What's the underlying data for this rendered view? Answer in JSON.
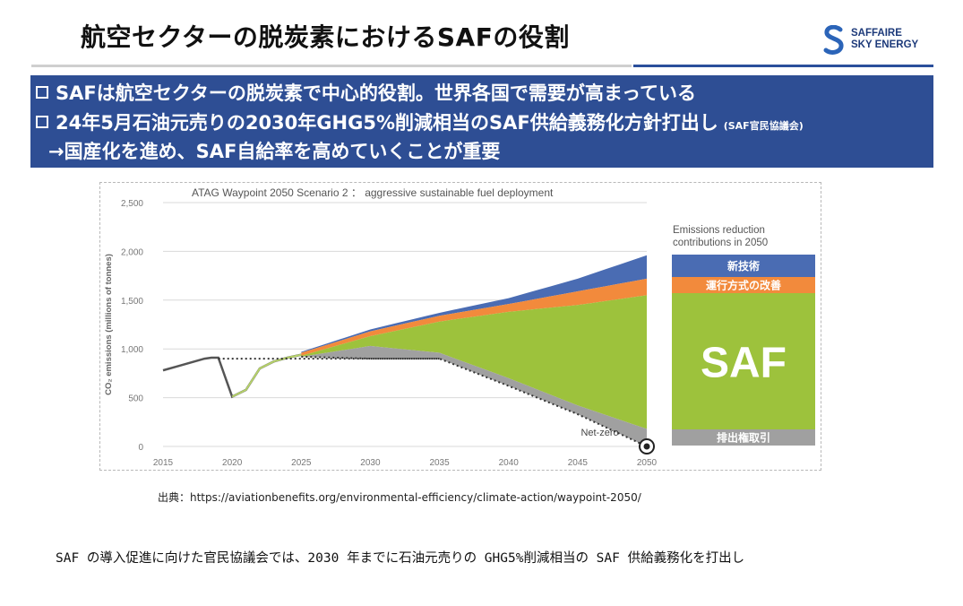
{
  "slide": {
    "title": "航空セクターの脱炭素におけるSAFの役割",
    "logo": {
      "line1": "SAFFAIRE",
      "line2": "SKY ENERGY"
    },
    "bullets": [
      {
        "text": "SAFは航空セクターの脱炭素で中心的役割。世界各国で需要が高まっている",
        "note": ""
      },
      {
        "text": "24年5月石油元売りの2030年GHG5%削減相当のSAF供給義務化方針打出し",
        "note": "(SAF官民協議会)"
      }
    ],
    "arrow_line": "→国産化を進め、SAF自給率を高めていくことが重要",
    "source": "出典：https://aviationbenefits.org/environmental-efficiency/climate-action/waypoint-2050/",
    "body": "SAF の導入促進に向けた官民協議会では、2030 年までに石油元売りの GHG5%削減相当の SAF 供給義務化を打出し"
  },
  "chart_data": {
    "type": "area",
    "title": "ATAG Waypoint 2050 Scenario 2 ： aggressive sustainable fuel deployment",
    "ylabel": "CO₂ emissions (millions of tonnes)",
    "ylim": [
      0,
      2500
    ],
    "xlim": [
      2015,
      2050
    ],
    "yticks": [
      0,
      500,
      1000,
      1500,
      2000,
      2500
    ],
    "ytick_labels": [
      "0",
      "500",
      "1,000",
      "1,500",
      "2,000",
      "2,500"
    ],
    "xticks": [
      2015,
      2020,
      2025,
      2030,
      2035,
      2040,
      2045,
      2050
    ],
    "x": [
      2015,
      2017,
      2018.5,
      2019,
      2020,
      2021,
      2022,
      2023,
      2024,
      2025,
      2026,
      2027,
      2028,
      2029,
      2030,
      2031,
      2032,
      2033,
      2034,
      2035,
      2036,
      2037,
      2038,
      2039,
      2040,
      2041,
      2042,
      2043,
      2044,
      2045,
      2046,
      2047,
      2048,
      2049,
      2050
    ],
    "series": [
      {
        "name": "",
        "role": "historical",
        "x": [
          2015,
          2016,
          2017,
          2018,
          2018.5,
          2019,
          2020,
          2021,
          2022,
          2023,
          2024,
          2025
        ],
        "values": [
          780,
          820,
          860,
          900,
          910,
          910,
          510,
          580,
          800,
          870,
          910,
          940
        ]
      },
      {
        "name": "",
        "role": "business-as-usual baseline",
        "x": [
          2019,
          2020,
          2021,
          2022,
          2023,
          2024,
          2025,
          2026,
          2027,
          2028,
          2029,
          2030,
          2031,
          2032,
          2033,
          2034,
          2035,
          2036,
          2037,
          2038,
          2039,
          2040,
          2041,
          2042,
          2043,
          2044,
          2045,
          2046,
          2047,
          2048,
          2049,
          2050
        ],
        "values": [
          910,
          510,
          580,
          800,
          870,
          910,
          970,
          1020,
          1070,
          1110,
          1160,
          1200,
          1240,
          1280,
          1310,
          1340,
          1370,
          1400,
          1430,
          1460,
          1490,
          1520,
          1560,
          1600,
          1640,
          1680,
          1720,
          1760,
          1800,
          1840,
          1890,
          1960
        ]
      },
      {
        "name": "新技術",
        "color": "#4a6cb3",
        "x": [
          2025,
          2030,
          2035,
          2040,
          2045,
          2050
        ],
        "values": [
          970,
          1200,
          1370,
          1520,
          1720,
          1960
        ]
      },
      {
        "name": "運行方式の改善",
        "color": "#f28a3c",
        "x": [
          2025,
          2030,
          2035,
          2040,
          2045,
          2050
        ],
        "values": [
          960,
          1180,
          1340,
          1460,
          1590,
          1720
        ]
      },
      {
        "name": "SAF",
        "color": "#9dc23c",
        "x": [
          2025,
          2030,
          2035,
          2040,
          2045,
          2050
        ],
        "values": [
          930,
          1130,
          1280,
          1380,
          1450,
          1550
        ]
      },
      {
        "name": "排出権取引",
        "color": "#a0a0a0",
        "x": [
          2025,
          2030,
          2035,
          2040,
          2045,
          2050
        ],
        "values": [
          920,
          1030,
          960,
          700,
          420,
          180
        ]
      },
      {
        "name": "",
        "role": "net emissions",
        "x": [
          2025,
          2030,
          2035,
          2040,
          2045,
          2050
        ],
        "values": [
          920,
          900,
          900,
          620,
          330,
          0
        ]
      }
    ],
    "dotted_flat": {
      "from": 2019,
      "to": 2035,
      "value": 900
    },
    "annotation": "Net-zero",
    "legend_panel": {
      "title_line1": "Emissions reduction",
      "title_line2": "contributions in 2050",
      "blocks": [
        {
          "label": "新技術",
          "color": "#4a6cb3"
        },
        {
          "label": "運行方式の改善",
          "color": "#f28a3c"
        },
        {
          "label": "SAF",
          "color": "#9dc23c"
        },
        {
          "label": "排出権取引",
          "color": "#a0a0a0"
        }
      ]
    }
  }
}
